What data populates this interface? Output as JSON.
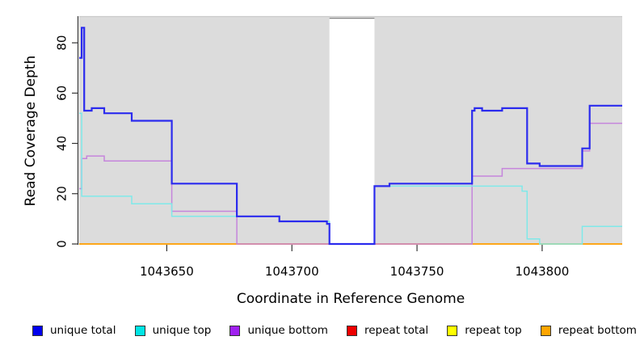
{
  "x_axis": {
    "label": "Coordinate in Reference Genome",
    "ticks": [
      1043650,
      1043700,
      1043750,
      1043800
    ]
  },
  "y_axis": {
    "label": "Read Coverage Depth",
    "ticks": [
      0,
      20,
      40,
      60,
      80
    ]
  },
  "legend": {
    "items": [
      {
        "label": "unique total",
        "color": "#0000EE"
      },
      {
        "label": "unique top",
        "color": "#00E5E5"
      },
      {
        "label": "unique bottom",
        "color": "#A020F0"
      },
      {
        "label": "repeat total",
        "color": "#EE0000"
      },
      {
        "label": "repeat top",
        "color": "#FFFF00"
      },
      {
        "label": "repeat bottom",
        "color": "#FFA500"
      }
    ]
  },
  "chart_data": {
    "type": "line",
    "subtype": "step-after",
    "title": "",
    "xlabel": "Coordinate in Reference Genome",
    "ylabel": "Read Coverage Depth",
    "xlim": [
      1043615,
      1043832
    ],
    "ylim": [
      0,
      91
    ],
    "x_ticks": [
      1043650,
      1043700,
      1043750,
      1043800
    ],
    "y_ticks": [
      0,
      20,
      40,
      60,
      80
    ],
    "grid": false,
    "legend_position": "bottom",
    "background_regions": [
      {
        "name": "covered-region-left",
        "x0": 1043615,
        "x1": 1043715,
        "fill": "#DCDCDC"
      },
      {
        "name": "covered-region-right",
        "x0": 1043733,
        "x1": 1043832,
        "fill": "#DCDCDC"
      }
    ],
    "gap_region": {
      "x0": 1043715,
      "x1": 1043733
    },
    "series": [
      {
        "name": "repeat total",
        "color": "#E03050",
        "width": 1.6,
        "points": [
          [
            1043615,
            0
          ]
        ]
      },
      {
        "name": "repeat top",
        "color": "#F0E000",
        "width": 1.6,
        "points": [
          [
            1043615,
            0
          ]
        ]
      },
      {
        "name": "repeat bottom",
        "color": "#FFA513",
        "width": 1.8,
        "points": [
          [
            1043615,
            0
          ]
        ]
      },
      {
        "name": "unique bottom",
        "color": "#C585DC",
        "width": 1.5,
        "points": [
          [
            1043615,
            22
          ],
          [
            1043616,
            34
          ],
          [
            1043618,
            35
          ],
          [
            1043625,
            33
          ],
          [
            1043652,
            13
          ],
          [
            1043678,
            0
          ],
          [
            1043772,
            27
          ],
          [
            1043784,
            30
          ],
          [
            1043816,
            37
          ],
          [
            1043819,
            48
          ]
        ]
      },
      {
        "name": "unique top",
        "color": "#7FE9E9",
        "width": 1.5,
        "points": [
          [
            1043615,
            52
          ],
          [
            1043616,
            19
          ],
          [
            1043636,
            16
          ],
          [
            1043652,
            11
          ],
          [
            1043695,
            9
          ],
          [
            1043715,
            0
          ],
          [
            1043733,
            23
          ],
          [
            1043792,
            21
          ],
          [
            1043794,
            2
          ],
          [
            1043799,
            0
          ],
          [
            1043816,
            7
          ]
        ]
      },
      {
        "name": "unique total",
        "color": "#2B2BEE",
        "width": 2.2,
        "points": [
          [
            1043615,
            74
          ],
          [
            1043616,
            86
          ],
          [
            1043617,
            53
          ],
          [
            1043620,
            54
          ],
          [
            1043625,
            52
          ],
          [
            1043636,
            49
          ],
          [
            1043652,
            24
          ],
          [
            1043678,
            11
          ],
          [
            1043695,
            9
          ],
          [
            1043714,
            8
          ],
          [
            1043715,
            0
          ],
          [
            1043733,
            23
          ],
          [
            1043739,
            24
          ],
          [
            1043772,
            53
          ],
          [
            1043773,
            54
          ],
          [
            1043776,
            53
          ],
          [
            1043784,
            54
          ],
          [
            1043794,
            32
          ],
          [
            1043799,
            31
          ],
          [
            1043816,
            38
          ],
          [
            1043819,
            55
          ]
        ]
      }
    ]
  }
}
